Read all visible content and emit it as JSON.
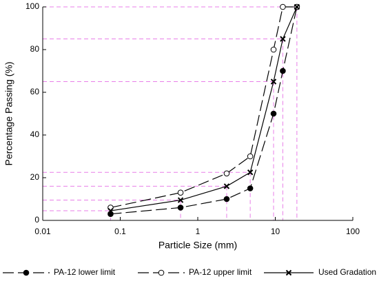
{
  "chart_data": {
    "type": "line",
    "xlabel": "Particle Size (mm)",
    "ylabel": "Percentage Passing (%)",
    "x": [
      0.075,
      0.6,
      2.36,
      4.75,
      9.5,
      12.5,
      19
    ],
    "xscale": "log",
    "xlim": [
      0.01,
      100
    ],
    "xticks": [
      0.01,
      0.1,
      1,
      10,
      100
    ],
    "ylim": [
      0,
      100
    ],
    "yticks": [
      0,
      20,
      40,
      60,
      80,
      100
    ],
    "guide_color": "#e87ee8",
    "guide_series": 2,
    "legend": "bottom",
    "series": [
      {
        "name": "PA-12 lower limit",
        "color": "#000000",
        "linestyle": "dashed",
        "marker": "filled-circle",
        "values": [
          3,
          6,
          10,
          15,
          50,
          70,
          100
        ]
      },
      {
        "name": "PA-12 upper limit",
        "color": "#000000",
        "linestyle": "dashed",
        "marker": "open-circle",
        "values": [
          6,
          13,
          22,
          30,
          80,
          100,
          100
        ]
      },
      {
        "name": "Used Gradation",
        "color": "#000000",
        "linestyle": "solid",
        "marker": "cross",
        "values": [
          4.5,
          9.5,
          16,
          22.5,
          65,
          85,
          100
        ]
      }
    ]
  }
}
